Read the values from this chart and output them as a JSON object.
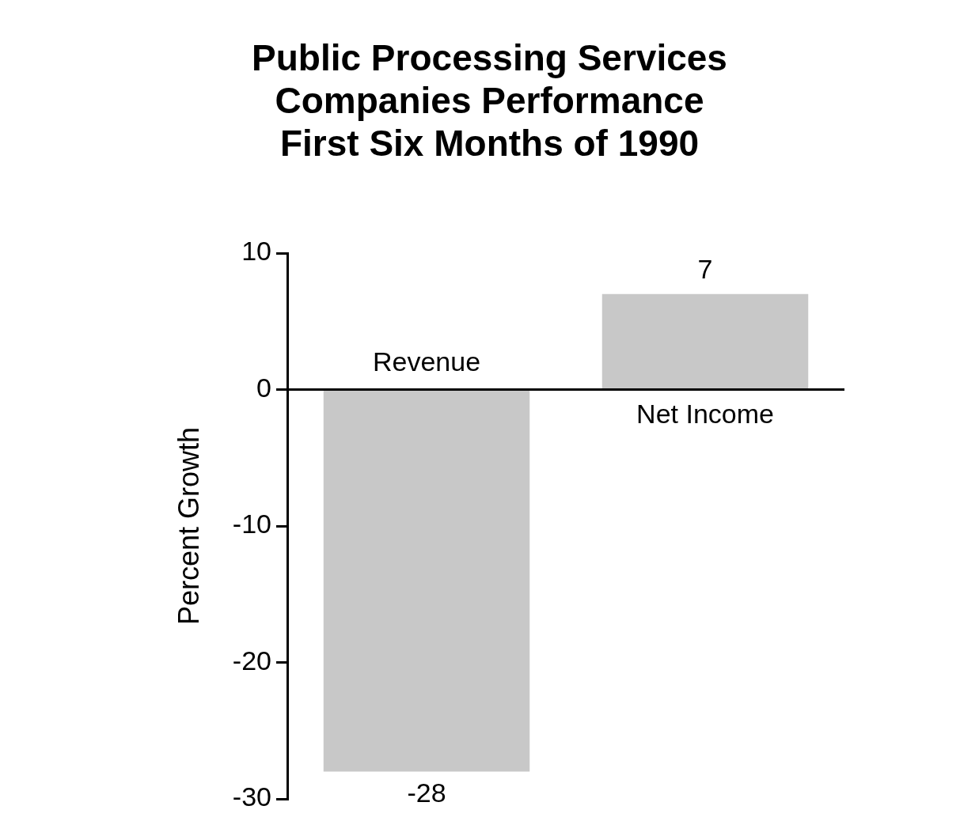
{
  "chart_data": {
    "type": "bar",
    "title": "Public Processing Services Companies Performance First Six Months of 1990",
    "ylabel": "Percent Growth",
    "categories": [
      "Revenue",
      "Net Income"
    ],
    "values": [
      -28,
      7
    ],
    "color": "#c8c8c8",
    "ylim": [
      -30,
      10
    ],
    "yticks": [
      -30,
      -20,
      -10,
      0,
      10
    ],
    "data_labels": true,
    "grid": false,
    "ref_lines": [
      {
        "axis": "y",
        "value": 0,
        "color": "#000000"
      }
    ]
  }
}
